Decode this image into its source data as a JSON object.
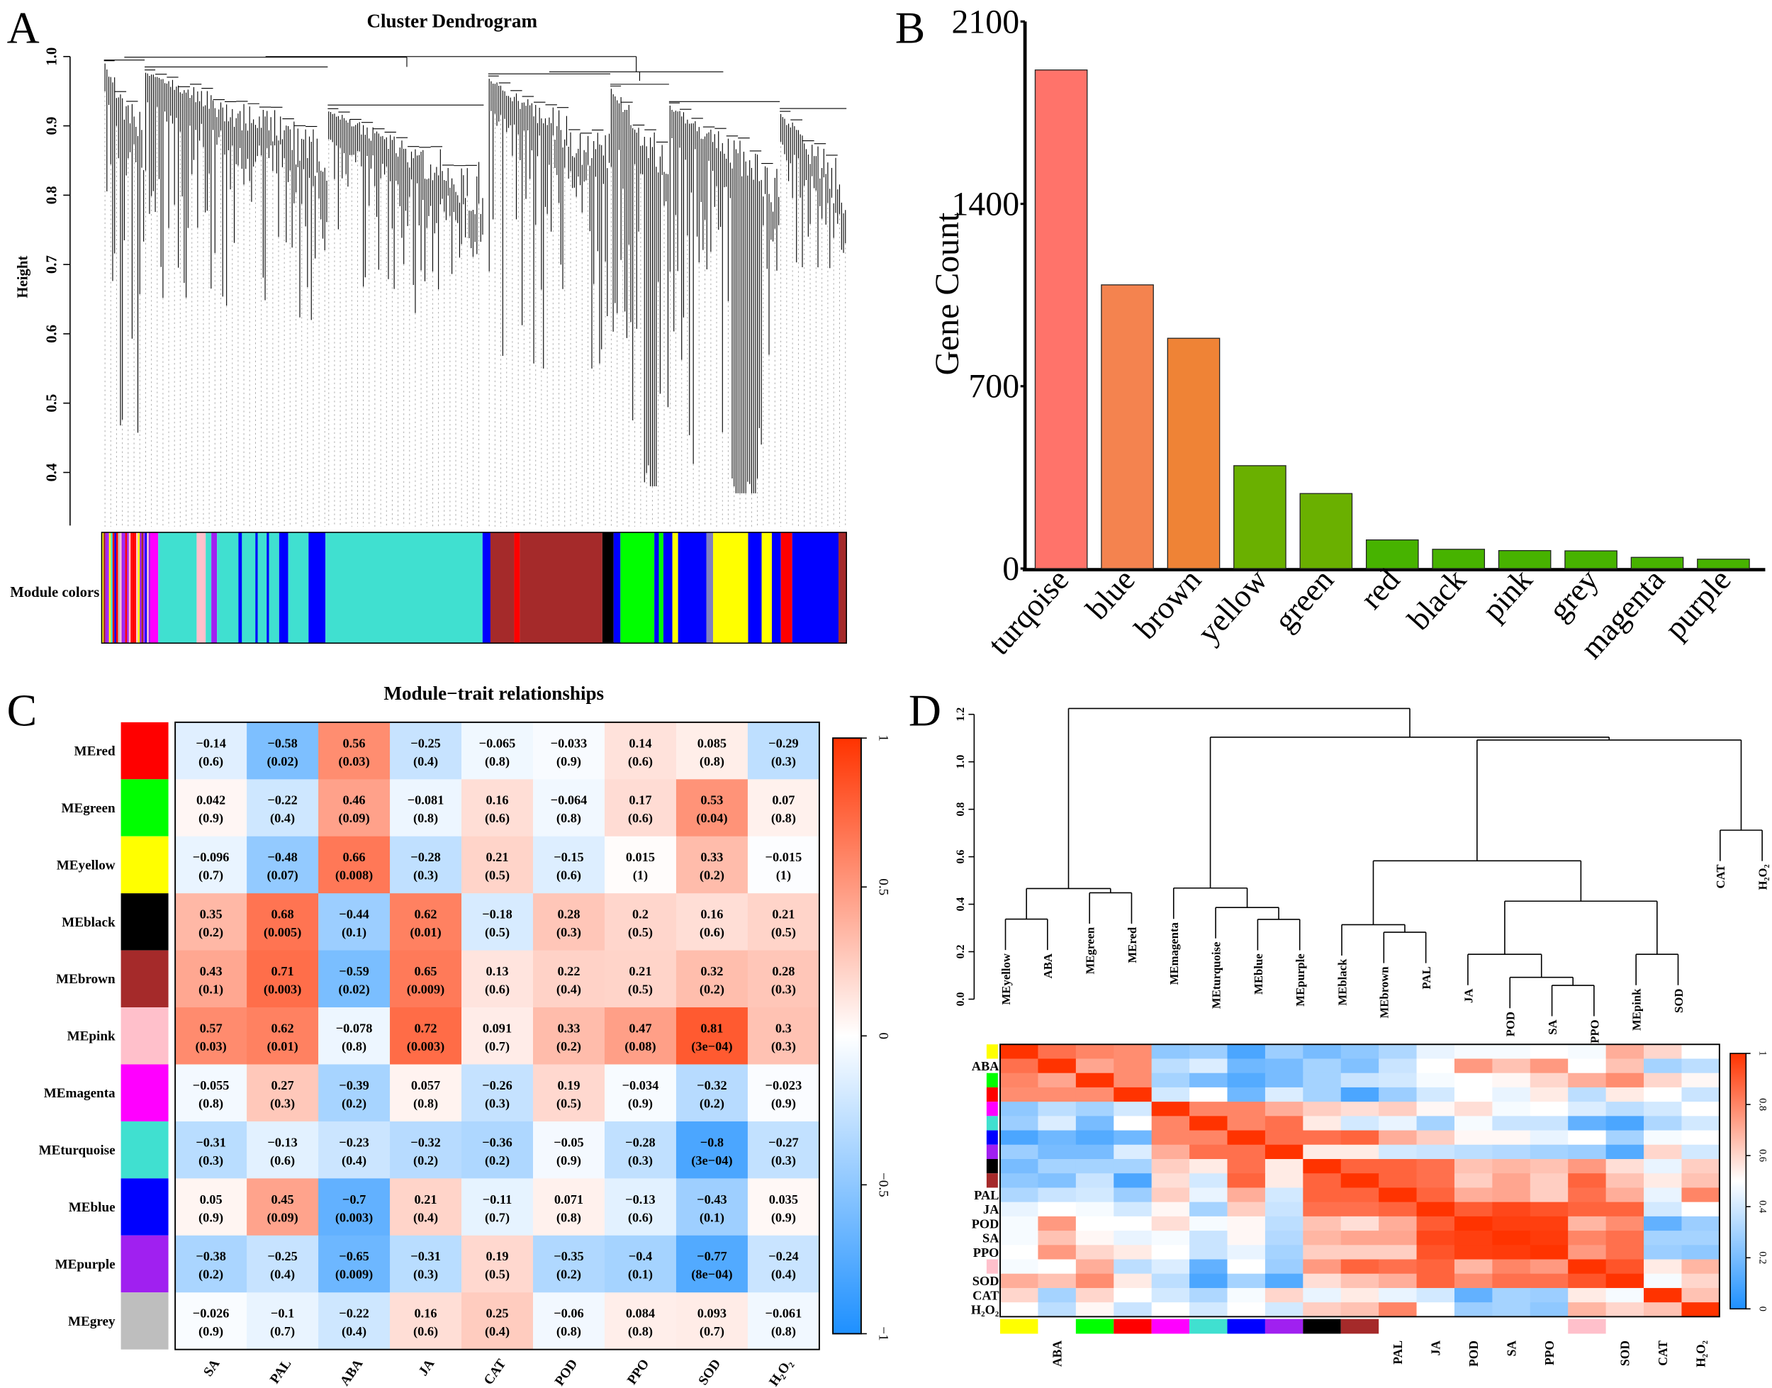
{
  "panels": {
    "a": "A",
    "b": "B",
    "c": "C",
    "d": "D"
  },
  "chart_data": [
    {
      "type": "dendrogram",
      "title": "Cluster Dendrogram",
      "ylabel": "Height",
      "yticks": [
        "1.0",
        "0.9",
        "0.8",
        "0.7",
        "0.6",
        "0.5",
        "0.4"
      ],
      "ylim": [
        0.35,
        1.0
      ],
      "color_bar_label": "Module colors",
      "module_color_segments": [
        [
          "turquoise",
          133,
          140,
          "#FF00FF"
        ],
        [
          "turquoise",
          140,
          174,
          "#40E0D0"
        ],
        [
          "pink",
          174,
          182,
          "#FFC0CB"
        ],
        [
          "turquoise",
          182,
          187,
          "#40E0D0"
        ],
        [
          "purple",
          187,
          192,
          "#A020F0"
        ],
        [
          "turquoise",
          192,
          247,
          "#40E0D0"
        ],
        [
          "blue",
          211,
          214,
          "#0000FF"
        ],
        [
          "blue",
          226,
          228,
          "#0000FF"
        ],
        [
          "blue",
          236,
          238,
          "#0000FF"
        ],
        [
          "blue",
          247,
          255,
          "#0000FF"
        ],
        [
          "turquoise",
          255,
          273,
          "#40E0D0"
        ],
        [
          "blue",
          273,
          288,
          "#0000FF"
        ],
        [
          "turquoise",
          288,
          427,
          "#40E0D0"
        ],
        [
          "blue",
          427,
          434,
          "#0000FF"
        ],
        [
          "brown",
          434,
          455,
          "#A52A2A"
        ],
        [
          "red",
          455,
          460,
          "#FF0000"
        ],
        [
          "brown",
          460,
          533,
          "#A52A2A"
        ],
        [
          "black",
          533,
          543,
          "#000000"
        ],
        [
          "blue",
          543,
          549,
          "#0000FF"
        ],
        [
          "green",
          549,
          579,
          "#00FF00"
        ],
        [
          "blue",
          579,
          583,
          "#0000FF"
        ],
        [
          "green",
          583,
          587,
          "#00FF00"
        ],
        [
          "blue",
          587,
          595,
          "#0000FF"
        ],
        [
          "yellow",
          595,
          600,
          "#FFFF00"
        ],
        [
          "blue",
          600,
          625,
          "#0000FF"
        ],
        [
          "grey",
          625,
          631,
          "#8080C0"
        ],
        [
          "yellow",
          631,
          662,
          "#FFFF00"
        ],
        [
          "blue",
          662,
          674,
          "#0000FF"
        ],
        [
          "yellow",
          674,
          683,
          "#FFFF00"
        ],
        [
          "blue",
          683,
          691,
          "#0000FF"
        ],
        [
          "red",
          691,
          701,
          "#FF0000"
        ],
        [
          "blue",
          701,
          742,
          "#0000FF"
        ],
        [
          "brown",
          742,
          749,
          "#A52A2A"
        ]
      ]
    },
    {
      "type": "bar",
      "title": "",
      "xlabel": "",
      "ylabel": "Gene Count",
      "ylim": [
        0,
        2100
      ],
      "yticks": [
        0,
        700,
        1400,
        2100
      ],
      "categories": [
        "turqoise",
        "blue",
        "brown",
        "yellow",
        "green",
        "red",
        "black",
        "pink",
        "grey",
        "magenta",
        "purple"
      ],
      "values": [
        1914,
        1089,
        884,
        395,
        288,
        110,
        74,
        69,
        68,
        43,
        36
      ],
      "bar_colors": [
        "#FF736A",
        "#F4834F",
        "#EF8336",
        "#6AB000",
        "#6AB000",
        "#47B300",
        "#47B300",
        "#47B300",
        "#47B300",
        "#47B300",
        "#47B300"
      ]
    },
    {
      "type": "heatmap",
      "title": "Module−trait relationships",
      "rows": [
        "MEred",
        "MEgreen",
        "MEyellow",
        "MEblack",
        "MEbrown",
        "MEpink",
        "MEmagenta",
        "MEturquoise",
        "MEblue",
        "MEpurple",
        "MEgrey"
      ],
      "row_colors": [
        "#FF0000",
        "#00FF00",
        "#FFFF00",
        "#000000",
        "#A52A2A",
        "#FFC0CB",
        "#FF00FF",
        "#40E0D0",
        "#0000FF",
        "#A020F0",
        "#BEBEBE"
      ],
      "columns": [
        "SA",
        "PAL",
        "ABA",
        "JA",
        "CAT",
        "POD",
        "PPO",
        "SOD",
        "H₂O₂"
      ],
      "values": [
        [
          "−0.14",
          "−0.58",
          "0.56",
          "−0.25",
          "−0.065",
          "−0.033",
          "0.14",
          "0.085",
          "−0.29"
        ],
        [
          "0.042",
          "−0.22",
          "0.46",
          "−0.081",
          "0.16",
          "−0.064",
          "0.17",
          "0.53",
          "0.07"
        ],
        [
          "−0.096",
          "−0.48",
          "0.66",
          "−0.28",
          "0.21",
          "−0.15",
          "0.015",
          "0.33",
          "−0.015"
        ],
        [
          "0.35",
          "0.68",
          "−0.44",
          "0.62",
          "−0.18",
          "0.28",
          "0.2",
          "0.16",
          "0.21"
        ],
        [
          "0.43",
          "0.71",
          "−0.59",
          "0.65",
          "0.13",
          "0.22",
          "0.21",
          "0.32",
          "0.28"
        ],
        [
          "0.57",
          "0.62",
          "−0.078",
          "0.72",
          "0.091",
          "0.33",
          "0.47",
          "0.81",
          "0.3"
        ],
        [
          "−0.055",
          "0.27",
          "−0.39",
          "0.057",
          "−0.26",
          "0.19",
          "−0.034",
          "−0.32",
          "−0.023"
        ],
        [
          "−0.31",
          "−0.13",
          "−0.23",
          "−0.32",
          "−0.36",
          "−0.05",
          "−0.28",
          "−0.8",
          "−0.27"
        ],
        [
          "0.05",
          "0.45",
          "−0.7",
          "0.21",
          "−0.11",
          "0.071",
          "−0.13",
          "−0.43",
          "0.035"
        ],
        [
          "−0.38",
          "−0.25",
          "−0.65",
          "−0.31",
          "0.19",
          "−0.35",
          "−0.4",
          "−0.77",
          "−0.24"
        ],
        [
          "−0.026",
          "−0.1",
          "−0.22",
          "0.16",
          "0.25",
          "−0.06",
          "0.084",
          "0.093",
          "−0.061"
        ]
      ],
      "pvalues": [
        [
          "(0.6)",
          "(0.02)",
          "(0.03)",
          "(0.4)",
          "(0.8)",
          "(0.9)",
          "(0.6)",
          "(0.8)",
          "(0.3)"
        ],
        [
          "(0.9)",
          "(0.4)",
          "(0.09)",
          "(0.8)",
          "(0.6)",
          "(0.8)",
          "(0.6)",
          "(0.04)",
          "(0.8)"
        ],
        [
          "(0.7)",
          "(0.07)",
          "(0.008)",
          "(0.3)",
          "(0.5)",
          "(0.6)",
          "(1)",
          "(0.2)",
          "(1)"
        ],
        [
          "(0.2)",
          "(0.005)",
          "(0.1)",
          "(0.01)",
          "(0.5)",
          "(0.3)",
          "(0.5)",
          "(0.6)",
          "(0.5)"
        ],
        [
          "(0.1)",
          "(0.003)",
          "(0.02)",
          "(0.009)",
          "(0.6)",
          "(0.4)",
          "(0.5)",
          "(0.2)",
          "(0.3)"
        ],
        [
          "(0.03)",
          "(0.01)",
          "(0.8)",
          "(0.003)",
          "(0.7)",
          "(0.2)",
          "(0.08)",
          "(3e−04)",
          "(0.3)"
        ],
        [
          "(0.8)",
          "(0.3)",
          "(0.2)",
          "(0.8)",
          "(0.3)",
          "(0.5)",
          "(0.9)",
          "(0.2)",
          "(0.9)"
        ],
        [
          "(0.3)",
          "(0.6)",
          "(0.4)",
          "(0.2)",
          "(0.2)",
          "(0.9)",
          "(0.3)",
          "(3e−04)",
          "(0.3)"
        ],
        [
          "(0.9)",
          "(0.09)",
          "(0.003)",
          "(0.4)",
          "(0.7)",
          "(0.8)",
          "(0.6)",
          "(0.1)",
          "(0.9)"
        ],
        [
          "(0.2)",
          "(0.4)",
          "(0.009)",
          "(0.3)",
          "(0.5)",
          "(0.2)",
          "(0.1)",
          "(8e−04)",
          "(0.4)"
        ],
        [
          "(0.9)",
          "(0.7)",
          "(0.4)",
          "(0.6)",
          "(0.4)",
          "(0.8)",
          "(0.8)",
          "(0.7)",
          "(0.8)"
        ]
      ],
      "colorbar_ticks": [
        "1",
        "0.5",
        "0",
        "−0.5",
        "−1"
      ],
      "color_range": [
        -1,
        1
      ],
      "colors": {
        "low": "#1E90FF",
        "mid": "#FFFFFF",
        "high": "#FF3300"
      }
    },
    {
      "type": "heatmap",
      "title": "",
      "dendrogram": {
        "yticks": [
          "0.0",
          "0.2",
          "0.4",
          "0.6",
          "0.8",
          "1.0",
          "1.2"
        ],
        "ylim": [
          0,
          1.2
        ],
        "leaves": [
          "MEyellow",
          "ABA",
          "MEgreen",
          "MEred",
          "MEmagenta",
          "MEturquoise",
          "MEblue",
          "MEpurple",
          "MEblack",
          "MEbrown",
          "PAL",
          "JA",
          "POD",
          "SA",
          "PPO",
          "MEpink",
          "SOD",
          "CAT",
          "H₂O₂"
        ],
        "merges": [
          [
            "L13",
            "L14",
            0.058
          ],
          [
            "L12",
            "M0",
            0.092
          ],
          [
            "L11",
            "M1",
            0.189
          ],
          [
            "L15",
            "L16",
            0.189
          ],
          [
            "L9",
            "L10",
            0.282
          ],
          [
            "L8",
            "M4",
            0.314
          ],
          [
            "L6",
            "L7",
            0.336
          ],
          [
            "L0",
            "L1",
            0.337
          ],
          [
            "L5",
            "M6",
            0.386
          ],
          [
            "M2",
            "M3",
            0.413
          ],
          [
            "L2",
            "L3",
            0.448
          ],
          [
            "M7",
            "M10",
            0.466
          ],
          [
            "L4",
            "M8",
            0.468
          ],
          [
            "M5",
            "M9",
            0.583
          ],
          [
            "L17",
            "L18",
            0.712
          ],
          [
            "M13",
            "M14",
            1.092
          ],
          [
            "M12",
            "M15",
            1.104
          ],
          [
            "M11",
            "M16",
            1.225
          ]
        ]
      },
      "order": [
        "yellow",
        "ABA",
        "green",
        "red",
        "magenta",
        "turquoise",
        "blue",
        "purple",
        "black",
        "brown",
        "PAL",
        "JA",
        "POD",
        "SA",
        "PPO",
        "pink",
        "SOD",
        "CAT",
        "H₂O₂"
      ],
      "row_labels": [
        "",
        "ABA",
        "",
        "",
        "",
        "",
        "",
        "",
        "",
        "",
        "PAL",
        "JA",
        "POD",
        "SA",
        "PPO",
        "",
        "SOD",
        "CAT",
        "H₂O₂"
      ],
      "strip_colors": [
        "#FFFF00",
        null,
        "#00FF00",
        "#FF0000",
        "#FF00FF",
        "#40E0D0",
        "#0000FF",
        "#A020F0",
        "#000000",
        "#A52A2A",
        null,
        null,
        null,
        null,
        null,
        "#FFC0CB",
        null,
        null,
        null
      ],
      "colorbar_ticks": [
        "1",
        "0.8",
        "0.6",
        "0.4",
        "0.2",
        "0"
      ],
      "color_range": [
        0,
        1
      ],
      "values": [
        [
          1,
          0.85,
          0.8,
          0.78,
          0.25,
          0.28,
          0.1,
          0.28,
          0.2,
          0.25,
          0.32,
          0.45,
          0.48,
          0.48,
          0.5,
          0.48,
          0.7,
          0.6,
          0.5
        ],
        [
          0.85,
          1,
          0.72,
          0.78,
          0.35,
          0.42,
          0.18,
          0.2,
          0.3,
          0.22,
          0.38,
          0.5,
          0.75,
          0.65,
          0.75,
          0.5,
          0.65,
          0.3,
          0.35
        ],
        [
          0.8,
          0.72,
          1,
          0.78,
          0.3,
          0.2,
          0.12,
          0.2,
          0.3,
          0.38,
          0.4,
          0.48,
          0.5,
          0.52,
          0.6,
          0.7,
          0.78,
          0.6,
          0.52
        ],
        [
          0.78,
          0.78,
          0.78,
          1,
          0.4,
          0.5,
          0.18,
          0.42,
          0.3,
          0.1,
          0.28,
          0.4,
          0.5,
          0.45,
          0.55,
          0.35,
          0.55,
          0.5,
          0.38
        ],
        [
          0.25,
          0.35,
          0.3,
          0.4,
          1,
          0.8,
          0.8,
          0.7,
          0.62,
          0.58,
          0.62,
          0.52,
          0.58,
          0.48,
          0.5,
          0.42,
          0.35,
          0.4,
          0.5
        ],
        [
          0.28,
          0.42,
          0.2,
          0.5,
          0.8,
          1,
          0.8,
          0.85,
          0.55,
          0.4,
          0.45,
          0.3,
          0.48,
          0.38,
          0.38,
          0.15,
          0.1,
          0.32,
          0.4
        ],
        [
          0.1,
          0.18,
          0.12,
          0.18,
          0.8,
          0.8,
          1,
          0.85,
          0.85,
          0.88,
          0.7,
          0.62,
          0.52,
          0.52,
          0.45,
          0.5,
          0.3,
          0.48,
          0.5
        ],
        [
          0.28,
          0.2,
          0.2,
          0.42,
          0.7,
          0.85,
          0.85,
          1,
          0.55,
          0.55,
          0.4,
          0.38,
          0.35,
          0.33,
          0.3,
          0.28,
          0.12,
          0.6,
          0.4
        ],
        [
          0.2,
          0.3,
          0.3,
          0.3,
          0.62,
          0.55,
          0.85,
          0.55,
          1,
          0.88,
          0.88,
          0.85,
          0.65,
          0.68,
          0.65,
          0.75,
          0.58,
          0.45,
          0.62
        ],
        [
          0.25,
          0.22,
          0.38,
          0.1,
          0.58,
          0.4,
          0.88,
          0.55,
          0.88,
          1,
          0.88,
          0.85,
          0.62,
          0.72,
          0.62,
          0.88,
          0.65,
          0.55,
          0.65
        ],
        [
          0.32,
          0.38,
          0.4,
          0.28,
          0.62,
          0.45,
          0.7,
          0.4,
          0.88,
          0.88,
          1,
          0.88,
          0.7,
          0.72,
          0.62,
          0.85,
          0.7,
          0.45,
          0.8
        ],
        [
          0.45,
          0.5,
          0.48,
          0.4,
          0.52,
          0.3,
          0.62,
          0.38,
          0.85,
          0.85,
          0.88,
          1,
          0.9,
          0.95,
          0.92,
          0.88,
          0.88,
          0.4,
          0.5
        ],
        [
          0.48,
          0.75,
          0.5,
          0.5,
          0.58,
          0.48,
          0.52,
          0.35,
          0.65,
          0.58,
          0.7,
          0.9,
          1,
          0.97,
          0.97,
          0.68,
          0.78,
          0.15,
          0.28
        ],
        [
          0.48,
          0.65,
          0.52,
          0.45,
          0.48,
          0.38,
          0.52,
          0.33,
          0.68,
          0.72,
          0.72,
          0.95,
          0.97,
          1,
          0.98,
          0.8,
          0.85,
          0.3,
          0.3
        ],
        [
          0.5,
          0.75,
          0.6,
          0.55,
          0.5,
          0.38,
          0.45,
          0.3,
          0.62,
          0.62,
          0.62,
          0.92,
          0.97,
          0.98,
          1,
          0.75,
          0.85,
          0.28,
          0.25
        ],
        [
          0.48,
          0.5,
          0.7,
          0.35,
          0.42,
          0.15,
          0.5,
          0.28,
          0.75,
          0.88,
          0.85,
          0.88,
          0.68,
          0.8,
          0.75,
          1,
          0.92,
          0.55,
          0.68
        ],
        [
          0.7,
          0.65,
          0.78,
          0.55,
          0.35,
          0.1,
          0.3,
          0.12,
          0.58,
          0.65,
          0.7,
          0.88,
          0.78,
          0.85,
          0.85,
          0.92,
          1,
          0.48,
          0.6
        ],
        [
          0.6,
          0.3,
          0.6,
          0.5,
          0.4,
          0.32,
          0.48,
          0.6,
          0.45,
          0.55,
          0.45,
          0.4,
          0.15,
          0.3,
          0.28,
          0.55,
          0.48,
          1,
          0.65
        ],
        [
          0.5,
          0.35,
          0.52,
          0.38,
          0.5,
          0.4,
          0.5,
          0.4,
          0.62,
          0.65,
          0.8,
          0.5,
          0.28,
          0.3,
          0.25,
          0.68,
          0.6,
          0.65,
          1
        ]
      ]
    }
  ]
}
